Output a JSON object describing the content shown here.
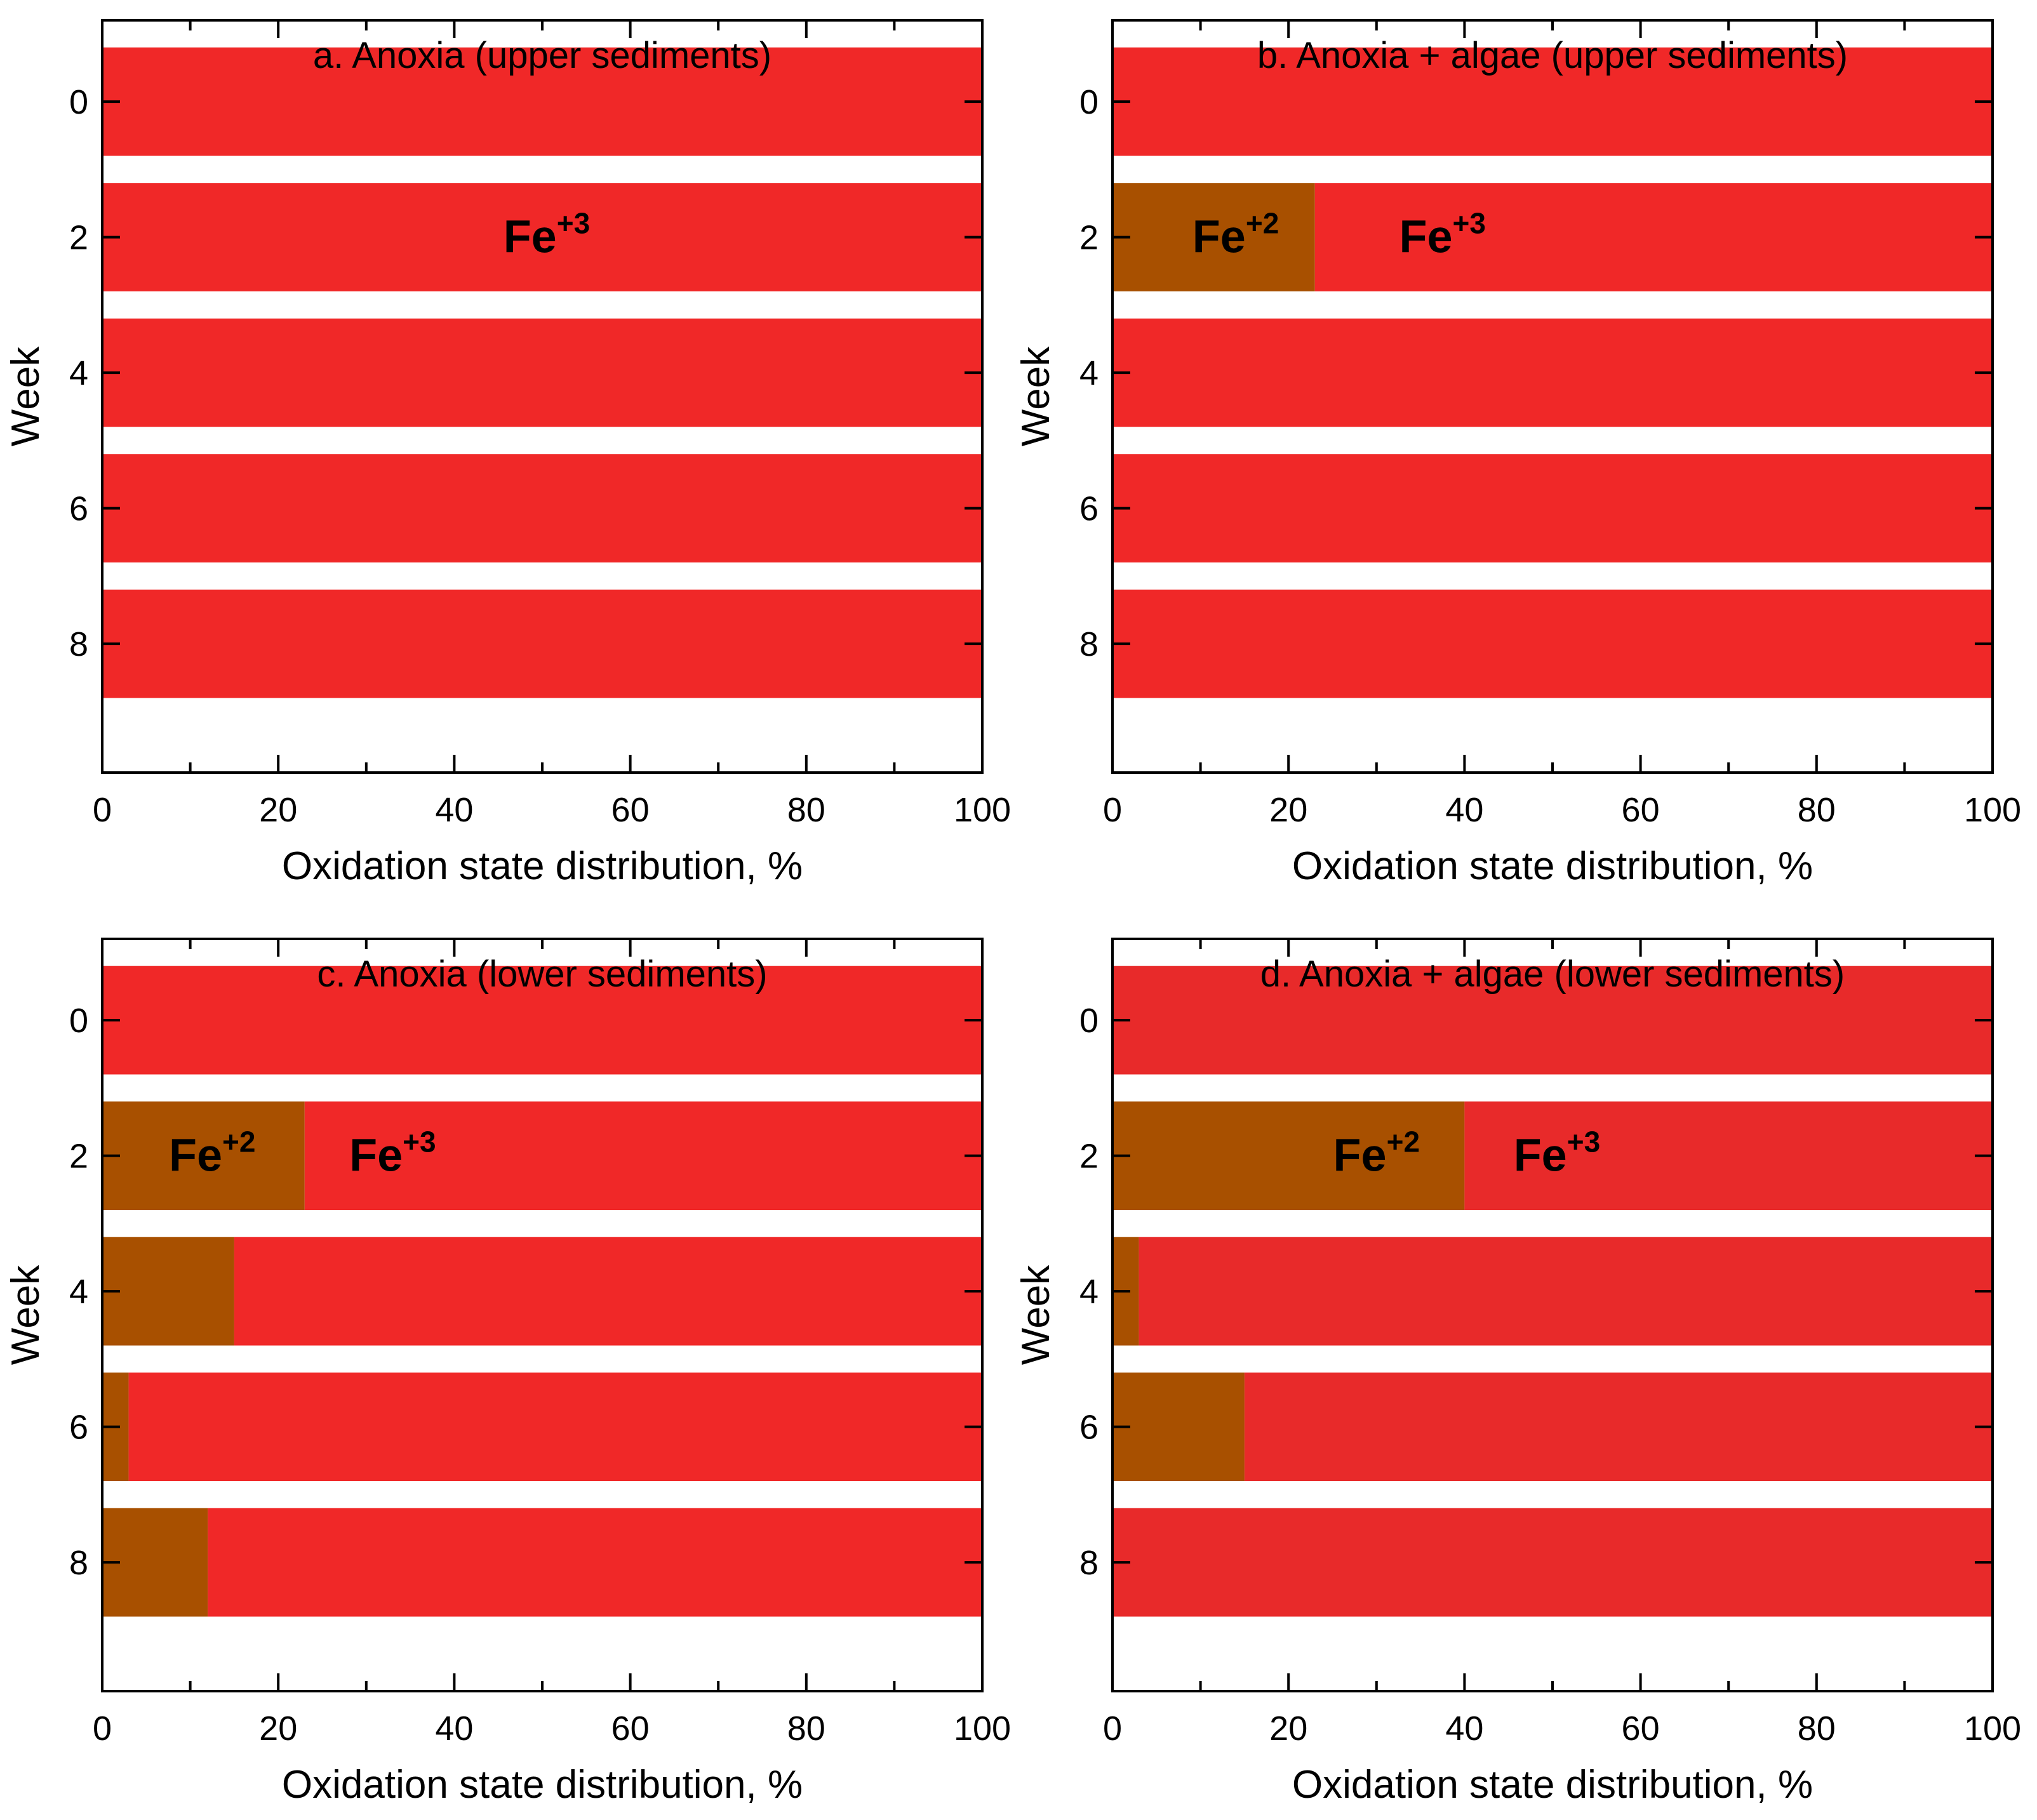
{
  "colors": {
    "fe2": "#a85000",
    "fe3": "#f02828",
    "fe3_alt": "#e82a2a"
  },
  "labels": {
    "fe_base": "Fe",
    "fe2_sup": "+2",
    "fe3_sup": "+3"
  },
  "chart_data": [
    {
      "type": "bar",
      "orientation": "horizontal",
      "stacked": true,
      "title": "a. Anoxia (upper sediments)",
      "xlabel": "Oxidation state distribution, %",
      "ylabel": "Week",
      "xlim": [
        0,
        100
      ],
      "ylim": [
        -1.2,
        9.9
      ],
      "xticks": [
        0,
        20,
        40,
        60,
        80,
        100
      ],
      "yticks": [
        0,
        2,
        4,
        6,
        8
      ],
      "categories": [
        0,
        2,
        4,
        6,
        8
      ],
      "series": [
        {
          "name": "Fe+2",
          "values": [
            0,
            0,
            0,
            0,
            0
          ]
        },
        {
          "name": "Fe+3",
          "values": [
            100,
            100,
            100,
            100,
            100
          ]
        }
      ]
    },
    {
      "type": "bar",
      "orientation": "horizontal",
      "stacked": true,
      "title": "b. Anoxia + algae (upper sediments)",
      "xlabel": "Oxidation state distribution, %",
      "ylabel": "Week",
      "xlim": [
        0,
        100
      ],
      "ylim": [
        -1.2,
        9.9
      ],
      "xticks": [
        0,
        20,
        40,
        60,
        80,
        100
      ],
      "yticks": [
        0,
        2,
        4,
        6,
        8
      ],
      "categories": [
        0,
        2,
        4,
        6,
        8
      ],
      "series": [
        {
          "name": "Fe+2",
          "values": [
            0,
            23,
            0,
            0,
            0
          ]
        },
        {
          "name": "Fe+3",
          "values": [
            100,
            77,
            100,
            100,
            100
          ]
        }
      ]
    },
    {
      "type": "bar",
      "orientation": "horizontal",
      "stacked": true,
      "title": "c. Anoxia (lower sediments)",
      "xlabel": "Oxidation state distribution, %",
      "ylabel": "Week",
      "xlim": [
        0,
        100
      ],
      "ylim": [
        -1.2,
        9.9
      ],
      "xticks": [
        0,
        20,
        40,
        60,
        80,
        100
      ],
      "yticks": [
        0,
        2,
        4,
        6,
        8
      ],
      "categories": [
        0,
        2,
        4,
        6,
        8
      ],
      "series": [
        {
          "name": "Fe+2",
          "values": [
            0,
            23,
            15,
            3,
            12
          ]
        },
        {
          "name": "Fe+3",
          "values": [
            100,
            77,
            85,
            97,
            88
          ]
        }
      ]
    },
    {
      "type": "bar",
      "orientation": "horizontal",
      "stacked": true,
      "title": "d. Anoxia + algae (lower sediments)",
      "xlabel": "Oxidation state distribution, %",
      "ylabel": "Week",
      "xlim": [
        0,
        100
      ],
      "ylim": [
        -1.2,
        9.9
      ],
      "xticks": [
        0,
        20,
        40,
        60,
        80,
        100
      ],
      "yticks": [
        0,
        2,
        4,
        6,
        8
      ],
      "categories": [
        0,
        2,
        4,
        6,
        8
      ],
      "series": [
        {
          "name": "Fe+2",
          "values": [
            0,
            40,
            3,
            15,
            0
          ]
        },
        {
          "name": "Fe+3",
          "values": [
            100,
            60,
            97,
            85,
            100
          ]
        }
      ]
    }
  ]
}
